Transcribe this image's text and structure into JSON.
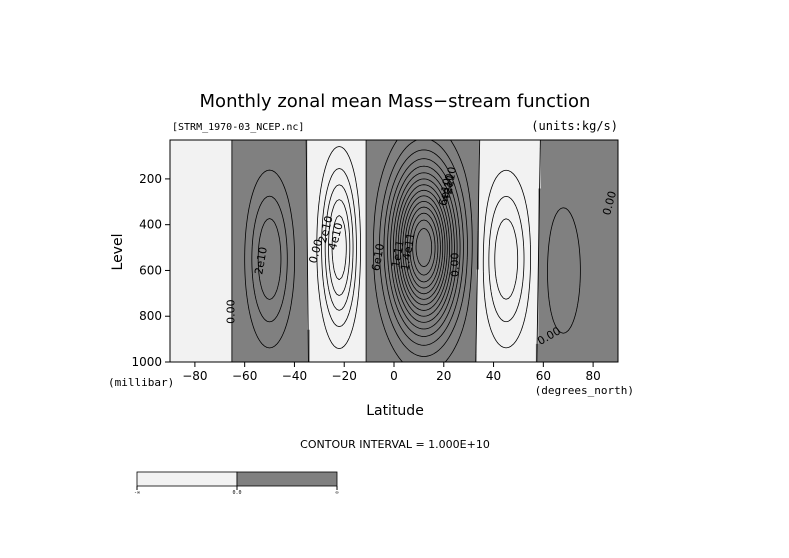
{
  "chart_data": {
    "type": "contour",
    "title": "Monthly zonal mean Mass−stream function",
    "file_label": "[STRM_1970-03_NCEP.nc]",
    "units_label": "(units:kg/s)",
    "xlabel": "Latitude",
    "x_units": "(degrees_north)",
    "ylabel": "Level",
    "y_units": "(millibar)",
    "xlim": [
      -90,
      90
    ],
    "ylim": [
      1000,
      30
    ],
    "y_inverted": true,
    "x_ticks": [
      -80,
      -60,
      -40,
      -20,
      0,
      20,
      40,
      60,
      80
    ],
    "x_tick_labels": [
      "−80",
      "−60",
      "−40",
      "−20",
      "0",
      "20",
      "40",
      "60",
      "80"
    ],
    "y_ticks": [
      200,
      400,
      600,
      800,
      1000
    ],
    "y_tick_labels": [
      "200",
      "400",
      "600",
      "800",
      "1000"
    ],
    "contour_interval_text": "CONTOUR INTERVAL = 1.000E+10",
    "contour_interval": 10000000000.0,
    "contour_labels": [
      "0.00",
      "2e10",
      "0.00",
      "2e10",
      "4e10",
      "6e10",
      "1e11",
      "1.4e11",
      "6e10",
      "4e10",
      "2e10",
      "0.00",
      "0.00",
      "0.00"
    ],
    "shading": {
      "negative_color": "#f2f2f2",
      "positive_color": "#808080",
      "threshold": 0
    },
    "colorbar": {
      "tick_labels": [
        "-∞",
        "0.0",
        "∞"
      ]
    },
    "cells": [
      {
        "sign": "negative",
        "lat_range": [
          -90,
          -62
        ],
        "peak": -10000000000.0
      },
      {
        "sign": "positive",
        "lat_range": [
          -62,
          -33
        ],
        "peak": 40000000000.0,
        "peak_lat": -50,
        "peak_level": 550
      },
      {
        "sign": "negative",
        "lat_range": [
          -33,
          -10
        ],
        "peak": -60000000000.0,
        "peak_lat": -22,
        "peak_level": 500
      },
      {
        "sign": "positive",
        "lat_range": [
          -10,
          32
        ],
        "peak": 160000000000.0,
        "peak_lat": 12,
        "peak_level": 500
      },
      {
        "sign": "negative",
        "lat_range": [
          32,
          62
        ],
        "peak": -40000000000.0,
        "peak_lat": 45,
        "peak_level": 550
      },
      {
        "sign": "positive",
        "lat_range": [
          62,
          90
        ],
        "peak": 20000000000.0,
        "peak_lat": 68,
        "peak_level": 600
      }
    ]
  }
}
